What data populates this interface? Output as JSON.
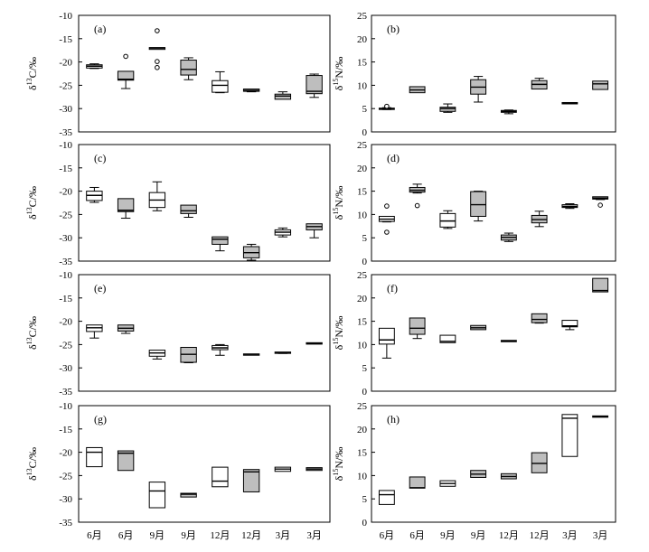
{
  "colors": {
    "filled_box": "#bebebe",
    "open_box": "#ffffff",
    "stroke": "#000000"
  },
  "chart_data": [
    {
      "panel_label": "(a)",
      "type": "boxplot",
      "ylabel_prefix": "δ",
      "ylabel_sup": "13",
      "ylabel_suffix": "C/‰",
      "ylim": [
        -35,
        -10
      ],
      "yticks": [
        -35,
        -30,
        -25,
        -20,
        -15,
        -10
      ],
      "categories": [],
      "boxes": [
        {
          "min": -21.4,
          "q1": -21.3,
          "median": -20.9,
          "q3": -20.6,
          "max": -20.4,
          "filled": false
        },
        {
          "min": -25.7,
          "q1": -23.9,
          "median": -23.7,
          "q3": -22.0,
          "max": -22.0,
          "filled": true,
          "outliers": [
            -18.8
          ]
        },
        {
          "min": -17.3,
          "q1": -17.3,
          "median": -17.0,
          "q3": -16.9,
          "max": -16.9,
          "filled": true,
          "outliers": [
            -13.3,
            -19.9,
            -21.2
          ]
        },
        {
          "min": -23.8,
          "q1": -22.8,
          "median": -21.6,
          "q3": -19.6,
          "max": -19.1,
          "filled": true
        },
        {
          "min": -26.6,
          "q1": -26.5,
          "median": -25.0,
          "q3": -24.0,
          "max": -22.1,
          "filled": false
        },
        {
          "min": -26.4,
          "q1": -26.3,
          "median": -26.1,
          "q3": -25.8,
          "max": -25.8,
          "filled": true
        },
        {
          "min": -28.0,
          "q1": -28.0,
          "median": -27.3,
          "q3": -26.9,
          "max": -26.4,
          "filled": true
        },
        {
          "min": -27.6,
          "q1": -26.8,
          "median": -26.3,
          "q3": -22.9,
          "max": -22.6,
          "filled": true
        }
      ]
    },
    {
      "panel_label": "(b)",
      "type": "boxplot",
      "ylabel_prefix": "δ",
      "ylabel_sup": "15",
      "ylabel_suffix": "N/‰",
      "ylim": [
        0,
        25
      ],
      "yticks": [
        0,
        5,
        10,
        15,
        20,
        25
      ],
      "categories": [],
      "boxes": [
        {
          "min": 4.8,
          "q1": 4.9,
          "median": 5.0,
          "q3": 5.1,
          "max": 5.2,
          "filled": true,
          "outliers": [
            5.5
          ]
        },
        {
          "min": 8.4,
          "q1": 8.4,
          "median": 9.0,
          "q3": 9.7,
          "max": 9.7,
          "filled": true
        },
        {
          "min": 4.2,
          "q1": 4.4,
          "median": 5.0,
          "q3": 5.3,
          "max": 6.0,
          "filled": true
        },
        {
          "min": 6.4,
          "q1": 8.1,
          "median": 9.6,
          "q3": 11.2,
          "max": 11.9,
          "filled": true
        },
        {
          "min": 3.9,
          "q1": 4.2,
          "median": 4.4,
          "q3": 4.6,
          "max": 4.7,
          "filled": true
        },
        {
          "min": 9.2,
          "q1": 9.2,
          "median": 10.2,
          "q3": 11.0,
          "max": 11.5,
          "filled": true
        },
        {
          "min": 6.1,
          "q1": 6.1,
          "median": 6.2,
          "q3": 6.3,
          "max": 6.3,
          "filled": true
        },
        {
          "min": 9.1,
          "q1": 9.1,
          "median": 10.3,
          "q3": 10.9,
          "max": 10.9,
          "filled": true
        }
      ]
    },
    {
      "panel_label": "(c)",
      "type": "boxplot",
      "ylabel_prefix": "δ",
      "ylabel_sup": "13",
      "ylabel_suffix": "C/‰",
      "ylim": [
        -35,
        -10
      ],
      "yticks": [
        -35,
        -30,
        -25,
        -20,
        -15,
        -10
      ],
      "categories": [],
      "boxes": [
        {
          "min": -22.4,
          "q1": -22.0,
          "median": -20.9,
          "q3": -20.0,
          "max": -19.2,
          "filled": false
        },
        {
          "min": -25.8,
          "q1": -24.4,
          "median": -24.1,
          "q3": -21.6,
          "max": -21.6,
          "filled": true
        },
        {
          "min": -24.2,
          "q1": -23.5,
          "median": -21.9,
          "q3": -20.3,
          "max": -18.0,
          "filled": false
        },
        {
          "min": -25.6,
          "q1": -24.8,
          "median": -24.2,
          "q3": -23.0,
          "max": -23.0,
          "filled": true
        },
        {
          "min": -32.8,
          "q1": -31.4,
          "median": -30.3,
          "q3": -29.8,
          "max": -29.8,
          "filled": true
        },
        {
          "min": -34.8,
          "q1": -34.3,
          "median": -33.2,
          "q3": -31.9,
          "max": -31.4,
          "filled": true
        },
        {
          "min": -29.8,
          "q1": -29.4,
          "median": -28.8,
          "q3": -28.3,
          "max": -27.9,
          "filled": false
        },
        {
          "min": -30.0,
          "q1": -28.3,
          "median": -27.6,
          "q3": -27.0,
          "max": -27.0,
          "filled": true
        }
      ]
    },
    {
      "panel_label": "(d)",
      "type": "boxplot",
      "ylabel_prefix": "δ",
      "ylabel_sup": "15",
      "ylabel_suffix": "N/‰",
      "ylim": [
        0,
        25
      ],
      "yticks": [
        0,
        5,
        10,
        15,
        20,
        25
      ],
      "categories": [],
      "boxes": [
        {
          "min": 8.4,
          "q1": 8.5,
          "median": 9.0,
          "q3": 9.6,
          "max": 9.6,
          "filled": false,
          "outliers": [
            11.8,
            6.2
          ]
        },
        {
          "min": 14.6,
          "q1": 14.8,
          "median": 15.2,
          "q3": 15.8,
          "max": 16.5,
          "filled": true,
          "outliers": [
            11.9
          ]
        },
        {
          "min": 7.0,
          "q1": 7.3,
          "median": 8.6,
          "q3": 10.2,
          "max": 10.8,
          "filled": false
        },
        {
          "min": 8.6,
          "q1": 9.6,
          "median": 12.1,
          "q3": 14.9,
          "max": 15.0,
          "filled": true
        },
        {
          "min": 4.2,
          "q1": 4.5,
          "median": 5.1,
          "q3": 5.6,
          "max": 6.0,
          "filled": true
        },
        {
          "min": 7.4,
          "q1": 8.2,
          "median": 8.9,
          "q3": 9.8,
          "max": 10.7,
          "filled": true
        },
        {
          "min": 11.3,
          "q1": 11.5,
          "median": 11.7,
          "q3": 12.1,
          "max": 12.3,
          "filled": true
        },
        {
          "min": 13.2,
          "q1": 13.3,
          "median": 13.5,
          "q3": 13.8,
          "max": 13.8,
          "filled": true,
          "outliers": [
            12.0
          ]
        }
      ]
    },
    {
      "panel_label": "(e)",
      "type": "boxplot",
      "ylabel_prefix": "δ",
      "ylabel_sup": "13",
      "ylabel_suffix": "C/‰",
      "ylim": [
        -35,
        -10
      ],
      "yticks": [
        -35,
        -30,
        -25,
        -20,
        -15,
        -10
      ],
      "categories": [],
      "boxes": [
        {
          "min": -23.6,
          "q1": -22.2,
          "median": -21.4,
          "q3": -20.8,
          "max": -20.8,
          "filled": false
        },
        {
          "min": -22.6,
          "q1": -22.1,
          "median": -21.5,
          "q3": -20.8,
          "max": -20.8,
          "filled": true
        },
        {
          "min": -28.1,
          "q1": -27.5,
          "median": -26.8,
          "q3": -26.2,
          "max": -26.2,
          "filled": false
        },
        {
          "min": -28.9,
          "q1": -28.8,
          "median": -27.1,
          "q3": -25.6,
          "max": -25.6,
          "filled": true
        },
        {
          "min": -27.3,
          "q1": -26.1,
          "median": -25.7,
          "q3": -25.2,
          "max": -25.0,
          "filled": false
        },
        {
          "min": -27.2,
          "q1": -27.2,
          "median": -27.1,
          "q3": -27.0,
          "max": -27.0,
          "filled": true
        },
        {
          "min": -26.9,
          "q1": -26.8,
          "median": -26.7,
          "q3": -26.6,
          "max": -26.6,
          "filled": true
        },
        {
          "min": -24.9,
          "q1": -24.9,
          "median": -24.8,
          "q3": -24.6,
          "max": -24.6,
          "filled": true
        }
      ]
    },
    {
      "panel_label": "(f)",
      "type": "boxplot",
      "ylabel_prefix": "δ",
      "ylabel_sup": "15",
      "ylabel_suffix": "N/‰",
      "ylim": [
        0,
        25
      ],
      "yticks": [
        0,
        5,
        10,
        15,
        20,
        25
      ],
      "categories": [],
      "boxes": [
        {
          "min": 7.1,
          "q1": 10.1,
          "median": 11.0,
          "q3": 13.5,
          "max": 13.5,
          "filled": false
        },
        {
          "min": 11.3,
          "q1": 12.2,
          "median": 13.5,
          "q3": 15.7,
          "max": 15.7,
          "filled": true
        },
        {
          "min": 10.4,
          "q1": 10.4,
          "median": 10.7,
          "q3": 12.0,
          "max": 12.0,
          "filled": false
        },
        {
          "min": 13.2,
          "q1": 13.2,
          "median": 13.6,
          "q3": 14.1,
          "max": 14.1,
          "filled": true
        },
        {
          "min": 10.7,
          "q1": 10.7,
          "median": 10.8,
          "q3": 10.9,
          "max": 10.9,
          "filled": true
        },
        {
          "min": 14.6,
          "q1": 14.7,
          "median": 15.4,
          "q3": 16.6,
          "max": 16.6,
          "filled": true
        },
        {
          "min": 13.2,
          "q1": 13.8,
          "median": 14.0,
          "q3": 15.2,
          "max": 15.2,
          "filled": false
        },
        {
          "min": 21.3,
          "q1": 21.3,
          "median": 21.6,
          "q3": 24.2,
          "max": 24.2,
          "filled": true
        }
      ]
    },
    {
      "panel_label": "(g)",
      "type": "boxplot",
      "ylabel_prefix": "δ",
      "ylabel_sup": "13",
      "ylabel_suffix": "C/‰",
      "ylim": [
        -35,
        -10
      ],
      "yticks": [
        -35,
        -30,
        -25,
        -20,
        -15,
        -10
      ],
      "categories": [
        "6月",
        "6月",
        "9月",
        "9月",
        "12月",
        "12月",
        "3月",
        "3月"
      ],
      "boxes": [
        {
          "min": -23.1,
          "q1": -23.1,
          "median": -20.0,
          "q3": -19.0,
          "max": -19.0,
          "filled": false
        },
        {
          "min": -23.9,
          "q1": -23.9,
          "median": -20.2,
          "q3": -19.7,
          "max": -19.7,
          "filled": true
        },
        {
          "min": -31.9,
          "q1": -31.9,
          "median": -28.3,
          "q3": -26.4,
          "max": -26.4,
          "filled": false
        },
        {
          "min": -29.6,
          "q1": -29.6,
          "median": -29.0,
          "q3": -28.8,
          "max": -28.8,
          "filled": true
        },
        {
          "min": -27.4,
          "q1": -27.4,
          "median": -26.2,
          "q3": -23.2,
          "max": -23.2,
          "filled": false
        },
        {
          "min": -28.5,
          "q1": -28.5,
          "median": -24.2,
          "q3": -23.7,
          "max": -23.7,
          "filled": true
        },
        {
          "min": -24.1,
          "q1": -24.1,
          "median": -23.6,
          "q3": -23.2,
          "max": -23.2,
          "filled": false
        },
        {
          "min": -23.9,
          "q1": -23.9,
          "median": -23.6,
          "q3": -23.3,
          "max": -23.3,
          "filled": true
        }
      ]
    },
    {
      "panel_label": "(h)",
      "type": "boxplot",
      "ylabel_prefix": "δ",
      "ylabel_sup": "15",
      "ylabel_suffix": "N/‰",
      "ylim": [
        0,
        25
      ],
      "yticks": [
        0,
        5,
        10,
        15,
        20,
        25
      ],
      "categories": [
        "6月",
        "6月",
        "9月",
        "9月",
        "12月",
        "12月",
        "3月",
        "3月"
      ],
      "boxes": [
        {
          "min": 3.8,
          "q1": 3.8,
          "median": 5.9,
          "q3": 6.8,
          "max": 6.8,
          "filled": false
        },
        {
          "min": 7.3,
          "q1": 7.3,
          "median": 7.4,
          "q3": 9.7,
          "max": 9.7,
          "filled": true
        },
        {
          "min": 7.7,
          "q1": 7.7,
          "median": 8.3,
          "q3": 8.9,
          "max": 8.9,
          "filled": false
        },
        {
          "min": 9.6,
          "q1": 9.6,
          "median": 10.3,
          "q3": 11.1,
          "max": 11.1,
          "filled": true
        },
        {
          "min": 9.3,
          "q1": 9.3,
          "median": 9.8,
          "q3": 10.4,
          "max": 10.4,
          "filled": true
        },
        {
          "min": 10.6,
          "q1": 10.6,
          "median": 12.6,
          "q3": 14.9,
          "max": 14.9,
          "filled": true
        },
        {
          "min": 14.1,
          "q1": 14.1,
          "median": 22.3,
          "q3": 23.1,
          "max": 23.1,
          "filled": false
        },
        {
          "min": 22.6,
          "q1": 22.6,
          "median": 22.7,
          "q3": 22.8,
          "max": 22.8,
          "filled": true
        }
      ]
    }
  ]
}
